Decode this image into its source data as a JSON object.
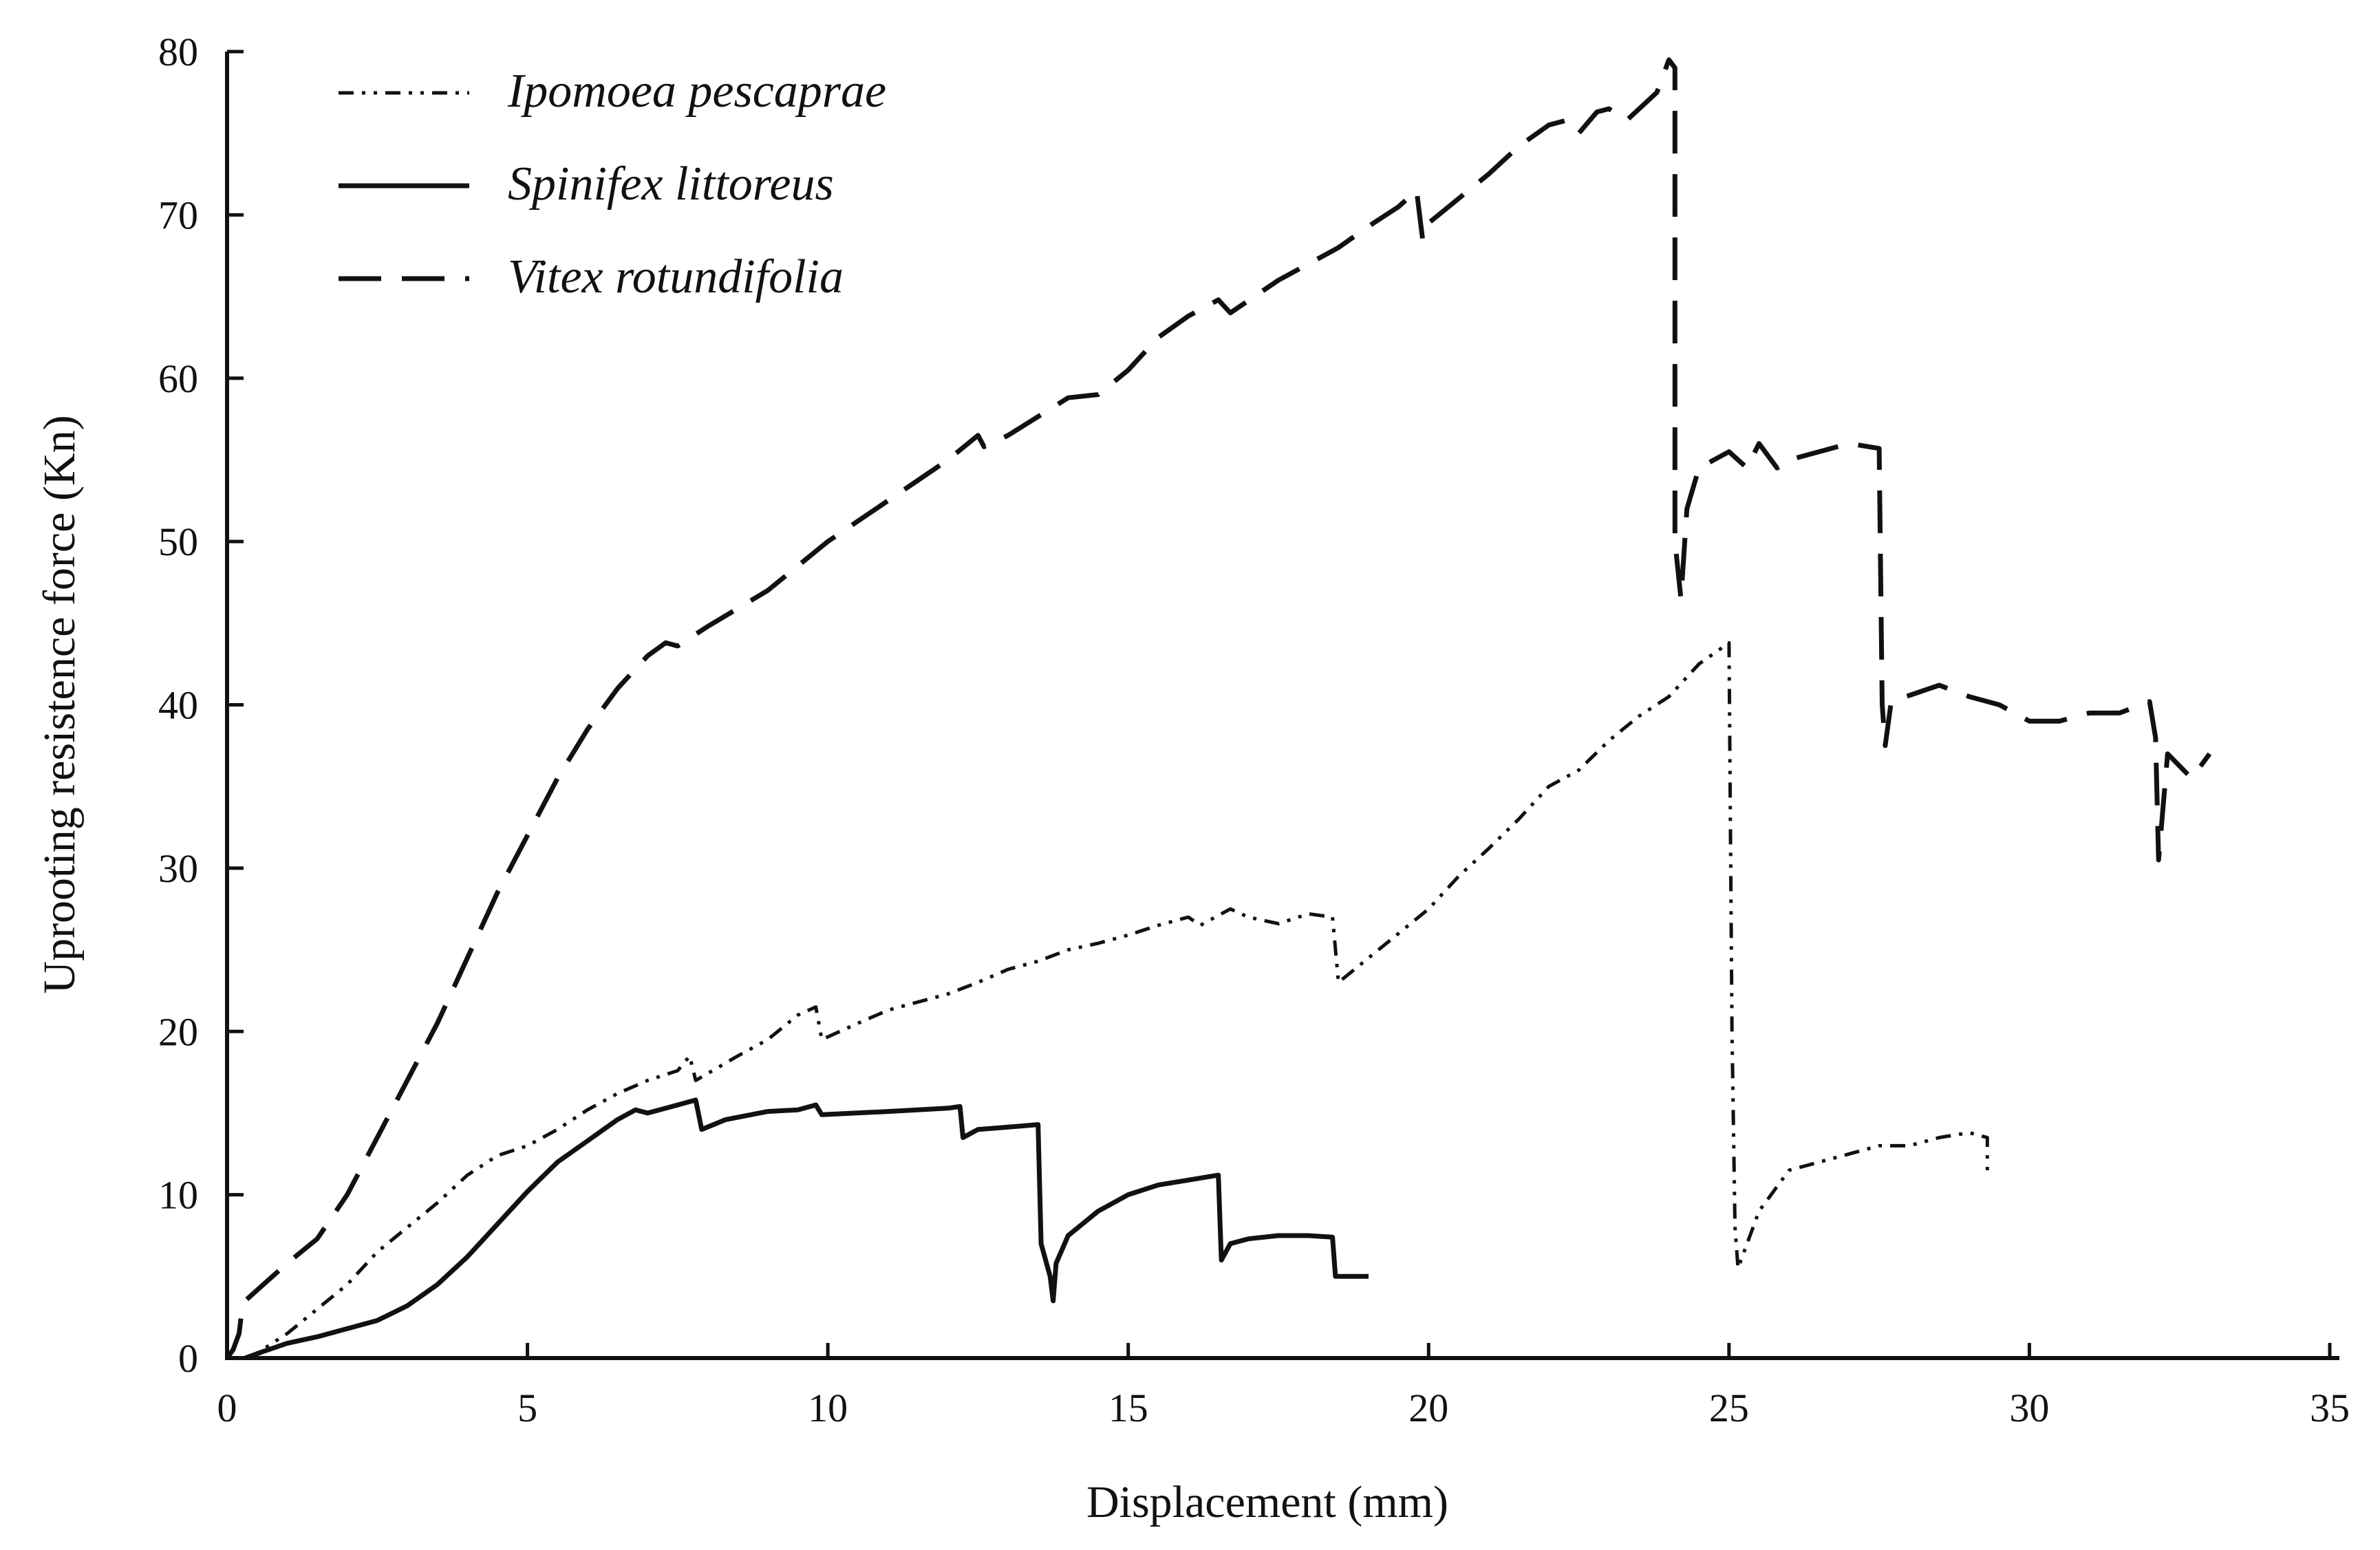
{
  "chart_data": {
    "type": "line",
    "title": "",
    "xlabel": "Displacement (mm)",
    "ylabel": "Uprooting resistence force (Kn)",
    "xlim": [
      0,
      35
    ],
    "ylim": [
      0,
      80
    ],
    "xticks": [
      0,
      5,
      10,
      15,
      20,
      25,
      30,
      35
    ],
    "yticks": [
      0,
      10,
      20,
      30,
      40,
      50,
      60,
      70,
      80
    ],
    "grid": false,
    "legend_position": "top-left",
    "series": [
      {
        "name": "Ipomoea pescaprae",
        "style": "dash-dot-dot",
        "points": [
          [
            0.3,
            0
          ],
          [
            0.5,
            0.3
          ],
          [
            1,
            1.5
          ],
          [
            1.5,
            3
          ],
          [
            2,
            4.5
          ],
          [
            2.5,
            6.5
          ],
          [
            3,
            8
          ],
          [
            3.5,
            9.5
          ],
          [
            4,
            11.2
          ],
          [
            4.5,
            12.4
          ],
          [
            5,
            13
          ],
          [
            5.5,
            14
          ],
          [
            6,
            15.2
          ],
          [
            6.5,
            16.2
          ],
          [
            7,
            17
          ],
          [
            7.5,
            17.6
          ],
          [
            7.7,
            18.5
          ],
          [
            7.8,
            17
          ],
          [
            8.5,
            18.5
          ],
          [
            9,
            19.5
          ],
          [
            9.5,
            21
          ],
          [
            9.8,
            21.5
          ],
          [
            9.9,
            19.5
          ],
          [
            10.5,
            20.5
          ],
          [
            11,
            21.3
          ],
          [
            11.5,
            21.8
          ],
          [
            12,
            22.3
          ],
          [
            12.5,
            23
          ],
          [
            13,
            23.8
          ],
          [
            13.5,
            24.3
          ],
          [
            14,
            25
          ],
          [
            14.5,
            25.4
          ],
          [
            15,
            25.9
          ],
          [
            15.5,
            26.5
          ],
          [
            16,
            27
          ],
          [
            16.2,
            26.5
          ],
          [
            16.7,
            27.5
          ],
          [
            17,
            27
          ],
          [
            17.5,
            26.6
          ],
          [
            18,
            27.2
          ],
          [
            18.4,
            27
          ],
          [
            18.5,
            23
          ],
          [
            19,
            24.5
          ],
          [
            19.5,
            26
          ],
          [
            20,
            27.5
          ],
          [
            20.5,
            29.5
          ],
          [
            21,
            31.2
          ],
          [
            21.5,
            33
          ],
          [
            22,
            35
          ],
          [
            22.5,
            36
          ],
          [
            23,
            37.8
          ],
          [
            23.5,
            39.3
          ],
          [
            24,
            40.5
          ],
          [
            24.5,
            42.5
          ],
          [
            25,
            43.8
          ],
          [
            25.05,
            20
          ],
          [
            25.1,
            8
          ],
          [
            25.15,
            5.5
          ],
          [
            25.5,
            9
          ],
          [
            26,
            11.5
          ],
          [
            26.5,
            12
          ],
          [
            27,
            12.5
          ],
          [
            27.5,
            13
          ],
          [
            28,
            13
          ],
          [
            28.5,
            13.5
          ],
          [
            29,
            13.8
          ],
          [
            29.3,
            13.5
          ],
          [
            29.3,
            11.5
          ]
        ]
      },
      {
        "name": "Spinifex littoreus",
        "style": "solid",
        "points": [
          [
            0.3,
            0
          ],
          [
            0.6,
            0.4
          ],
          [
            1,
            0.9
          ],
          [
            1.5,
            1.3
          ],
          [
            2,
            1.8
          ],
          [
            2.5,
            2.3
          ],
          [
            3,
            3.2
          ],
          [
            3.5,
            4.5
          ],
          [
            4,
            6.2
          ],
          [
            4.5,
            8.2
          ],
          [
            5,
            10.2
          ],
          [
            5.5,
            12
          ],
          [
            6,
            13.3
          ],
          [
            6.5,
            14.6
          ],
          [
            6.8,
            15.2
          ],
          [
            7,
            15
          ],
          [
            7.5,
            15.5
          ],
          [
            7.8,
            15.8
          ],
          [
            7.9,
            14
          ],
          [
            8.3,
            14.6
          ],
          [
            9,
            15.1
          ],
          [
            9.5,
            15.2
          ],
          [
            9.8,
            15.5
          ],
          [
            9.9,
            14.9
          ],
          [
            11,
            15.1
          ],
          [
            12,
            15.3
          ],
          [
            12.2,
            15.4
          ],
          [
            12.25,
            13.5
          ],
          [
            12.5,
            14
          ],
          [
            13.2,
            14.2
          ],
          [
            13.5,
            14.3
          ],
          [
            13.55,
            7
          ],
          [
            13.7,
            5
          ],
          [
            13.75,
            3.5
          ],
          [
            13.8,
            5.8
          ],
          [
            14,
            7.5
          ],
          [
            14.5,
            9
          ],
          [
            15,
            10
          ],
          [
            15.5,
            10.6
          ],
          [
            16,
            10.9
          ],
          [
            16.5,
            11.2
          ],
          [
            16.55,
            6
          ],
          [
            16.7,
            7
          ],
          [
            17,
            7.3
          ],
          [
            17.5,
            7.5
          ],
          [
            18,
            7.5
          ],
          [
            18.4,
            7.4
          ],
          [
            18.45,
            5
          ],
          [
            18.7,
            5
          ],
          [
            19,
            5
          ]
        ]
      },
      {
        "name": "Vitex rotundifolia",
        "style": "long-dash",
        "points": [
          [
            0,
            0
          ],
          [
            0.1,
            0.5
          ],
          [
            0.2,
            1.5
          ],
          [
            0.25,
            3
          ],
          [
            0.3,
            3.5
          ],
          [
            1,
            5.8
          ],
          [
            1.5,
            7.3
          ],
          [
            2,
            10
          ],
          [
            2.5,
            13.5
          ],
          [
            3,
            17
          ],
          [
            3.5,
            20.5
          ],
          [
            4,
            24.5
          ],
          [
            4.5,
            28.5
          ],
          [
            5,
            32
          ],
          [
            5.5,
            35.5
          ],
          [
            6,
            38.5
          ],
          [
            6.5,
            41
          ],
          [
            7,
            43
          ],
          [
            7.3,
            43.8
          ],
          [
            7.5,
            43.6
          ],
          [
            8,
            44.8
          ],
          [
            9,
            47
          ],
          [
            10,
            50
          ],
          [
            11,
            52.5
          ],
          [
            12,
            55
          ],
          [
            12.5,
            56.5
          ],
          [
            12.6,
            55.8
          ],
          [
            13,
            56.5
          ],
          [
            14,
            58.8
          ],
          [
            14.5,
            59
          ],
          [
            15,
            60.5
          ],
          [
            15.5,
            62.5
          ],
          [
            16,
            63.8
          ],
          [
            16.5,
            64.8
          ],
          [
            16.7,
            64
          ],
          [
            17.5,
            66
          ],
          [
            18,
            67
          ],
          [
            18.5,
            68
          ],
          [
            19,
            69.3
          ],
          [
            19.5,
            70.5
          ],
          [
            19.8,
            71.5
          ],
          [
            19.9,
            68.5
          ],
          [
            20,
            69.5
          ],
          [
            21,
            72.5
          ],
          [
            21.5,
            74.2
          ],
          [
            22,
            75.5
          ],
          [
            22.3,
            75.8
          ],
          [
            22.5,
            75
          ],
          [
            22.8,
            76.3
          ],
          [
            23,
            76.5
          ],
          [
            23.3,
            75.8
          ],
          [
            23.8,
            77.5
          ],
          [
            24,
            79.5
          ],
          [
            24.1,
            79
          ],
          [
            24.1,
            50
          ],
          [
            24.2,
            46.5
          ],
          [
            24.3,
            52
          ],
          [
            24.5,
            54.5
          ],
          [
            25,
            55.5
          ],
          [
            25.3,
            54.5
          ],
          [
            25.5,
            56
          ],
          [
            25.8,
            54.5
          ],
          [
            26,
            55
          ],
          [
            26.5,
            55.5
          ],
          [
            27,
            56
          ],
          [
            27.5,
            55.7
          ],
          [
            27.55,
            40
          ],
          [
            27.6,
            37.5
          ],
          [
            27.7,
            40.2
          ],
          [
            28.5,
            41.2
          ],
          [
            29,
            40.5
          ],
          [
            29.5,
            40
          ],
          [
            30,
            39
          ],
          [
            30.5,
            39
          ],
          [
            31,
            39.5
          ],
          [
            31.5,
            39.5
          ],
          [
            32,
            40.2
          ],
          [
            32.1,
            38
          ],
          [
            32.15,
            30.5
          ],
          [
            32.3,
            37
          ],
          [
            32.7,
            35.5
          ],
          [
            33,
            37
          ]
        ]
      }
    ]
  }
}
